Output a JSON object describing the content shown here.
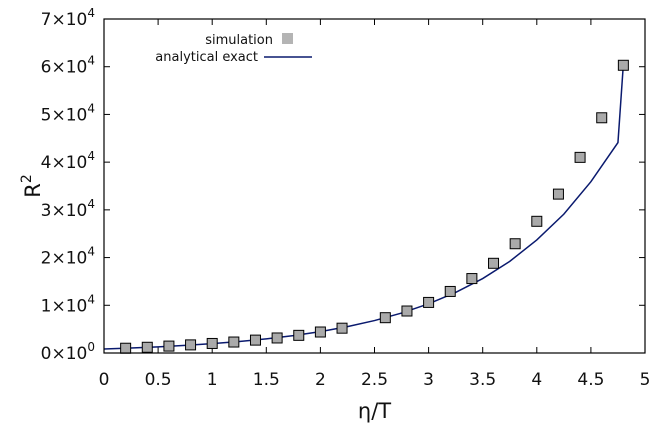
{
  "chart_data": {
    "type": "scatter",
    "xlabel": "η/T",
    "ylabel": "R",
    "ylabel_sup": "2",
    "xlim": [
      0,
      5
    ],
    "ylim": [
      0,
      70000
    ],
    "x_ticks": [
      0,
      0.5,
      1,
      1.5,
      2,
      2.5,
      3,
      3.5,
      4,
      4.5,
      5
    ],
    "x_tick_labels": [
      "0",
      "0.5",
      "1",
      "1.5",
      "2",
      "2.5",
      "3",
      "3.5",
      "4",
      "4.5",
      "5"
    ],
    "y_ticks": [
      0,
      10000,
      20000,
      30000,
      40000,
      50000,
      60000,
      70000
    ],
    "y_tick_labels": [
      {
        "mant": "0",
        "exp": "0"
      },
      {
        "mant": "1",
        "exp": "4"
      },
      {
        "mant": "2",
        "exp": "4"
      },
      {
        "mant": "3",
        "exp": "4"
      },
      {
        "mant": "4",
        "exp": "4"
      },
      {
        "mant": "5",
        "exp": "4"
      },
      {
        "mant": "6",
        "exp": "4"
      },
      {
        "mant": "7",
        "exp": "4"
      }
    ],
    "legend": {
      "placement": "top-left",
      "entries": [
        "simulation",
        "analytical exact"
      ]
    },
    "series": [
      {
        "name": "simulation",
        "kind": "markers",
        "color": "#aaaaaa",
        "x": [
          0.2,
          0.4,
          0.6,
          0.8,
          1.0,
          1.2,
          1.4,
          1.6,
          1.8,
          2.0,
          2.2,
          2.6,
          2.8,
          3.0,
          3.2,
          3.4,
          3.6,
          3.8,
          4.0,
          4.2,
          4.4,
          4.6,
          4.8
        ],
        "y": [
          1000,
          1200,
          1450,
          1700,
          2000,
          2300,
          2700,
          3150,
          3700,
          4400,
          5200,
          7400,
          8800,
          10600,
          12900,
          15600,
          18800,
          22900,
          27600,
          33300,
          41000,
          49300,
          60300
        ]
      },
      {
        "name": "analytical exact",
        "kind": "line",
        "color": "#0a1a6e",
        "x": [
          0,
          0.25,
          0.5,
          0.75,
          1.0,
          1.25,
          1.5,
          1.75,
          2.0,
          2.25,
          2.5,
          2.75,
          3.0,
          3.25,
          3.5,
          3.75,
          4.0,
          4.25,
          4.5,
          4.75,
          4.8
        ],
        "y": [
          850,
          1050,
          1290,
          1590,
          1960,
          2410,
          2970,
          3650,
          4490,
          5530,
          6800,
          8370,
          10300,
          12700,
          15600,
          19200,
          23700,
          29100,
          35900,
          44100,
          60500
        ]
      }
    ]
  }
}
